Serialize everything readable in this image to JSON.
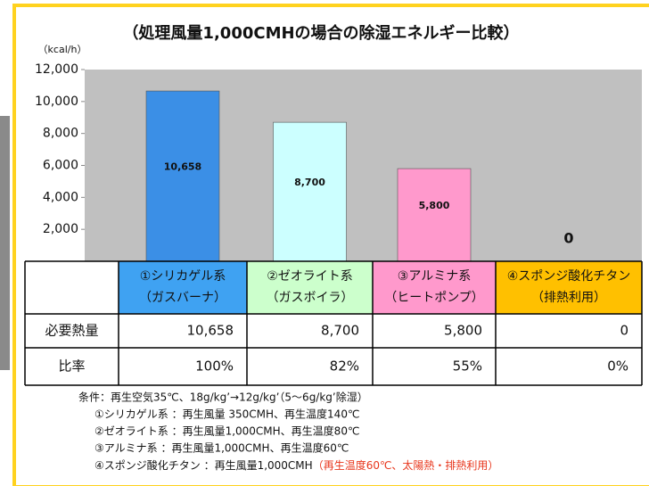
{
  "chart_data": {
    "type": "bar",
    "title": "（処理風量1,000CMHの場合の除湿エネルギー比較）",
    "y_unit": "（kcal/h）",
    "categories": [
      [
        "①シリカゲル系",
        "（ガスバーナ）"
      ],
      [
        "②ゼオライト系",
        "（ガスボイラ）"
      ],
      [
        "③アルミナ系",
        "（ヒートポンプ）"
      ],
      [
        "④スポンジ酸化チタン",
        "（排熱利用）"
      ]
    ],
    "values": [
      10658,
      8700,
      5800,
      0
    ],
    "value_labels": [
      "10,658",
      "8,700",
      "5,800",
      "0"
    ],
    "colors": [
      "#3b8fe6",
      "#ccffff",
      "#ff99cc",
      "#ffc000"
    ],
    "header_colors": [
      "#3fa2f2",
      "#ccffcc",
      "#ff99cc",
      "#ffc000"
    ],
    "ylim": [
      0,
      12000
    ],
    "yticks": [
      {
        "value": 2000,
        "label": "2,000"
      },
      {
        "value": 4000,
        "label": "4,000"
      },
      {
        "value": 6000,
        "label": "6,000"
      },
      {
        "value": 8000,
        "label": "8,000"
      },
      {
        "value": 10000,
        "label": "10,000"
      },
      {
        "value": 12000,
        "label": "12,000"
      }
    ],
    "table": {
      "rows": [
        {
          "label": "必要熱量",
          "values": [
            10658,
            8700,
            5800,
            0
          ],
          "value_labels": [
            "10,658",
            "8,700",
            "5,800",
            "0"
          ]
        },
        {
          "label": "比率",
          "values": [
            100,
            82,
            55,
            0
          ],
          "value_labels": [
            "100%",
            "82%",
            "55%",
            "0%"
          ]
        }
      ]
    },
    "notes": [
      "条件：再生空気35℃、18g/kg’→12g/kg’（5～6g/kg’除湿）",
      "①シリカゲル系 ：再生風量  350CMH、再生温度140℃",
      "②ゼオライト系 ：再生風量1,000CMH、再生温度80℃",
      "③アルミナ系    ：再生風量1,000CMH、再生温度60℃"
    ],
    "note_last": [
      "④スポンジ酸化チタン ：再生風量1,000CMH",
      "（再生温度60℃、太陽熱・排熱利用）"
    ]
  }
}
